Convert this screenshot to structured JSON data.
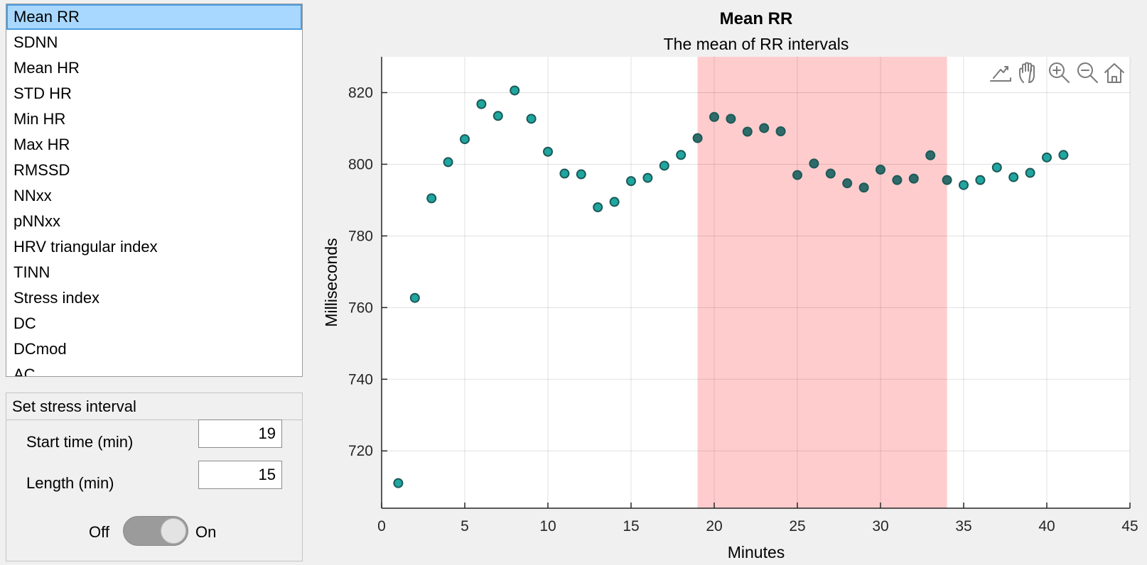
{
  "metric_list": {
    "items": [
      "Mean RR",
      "SDNN",
      "Mean HR",
      "STD HR",
      "Min HR",
      "Max HR",
      "RMSSD",
      "NNxx",
      "pNNxx",
      "HRV triangular index",
      "TINN",
      "Stress index",
      "DC",
      "DCmod",
      "AC"
    ],
    "selected_index": 0
  },
  "stress_panel": {
    "title": "Set stress interval",
    "start_label": "Start time (min)",
    "start_value": "19",
    "length_label": "Length (min)",
    "length_value": "15",
    "toggle_off_label": "Off",
    "toggle_on_label": "On",
    "toggle_state": "on"
  },
  "colors": {
    "marker_fill": "#1fa6a0",
    "marker_fill_in_interval": "#2f6b6a",
    "marker_edge": "#1c5a58",
    "highlight": "#ffcccd",
    "selection": "#a8d8ff"
  },
  "toolbar_icons": [
    "export-icon",
    "pan-hand-icon",
    "zoom-in-icon",
    "zoom-out-icon",
    "home-icon"
  ],
  "chart_data": {
    "type": "scatter",
    "title": "Mean RR",
    "subtitle": "The mean of RR intervals",
    "xlabel": "Minutes",
    "ylabel": "Milliseconds",
    "xlim": [
      0,
      45
    ],
    "ylim": [
      704,
      830
    ],
    "xticks": [
      0,
      5,
      10,
      15,
      20,
      25,
      30,
      35,
      40,
      45
    ],
    "yticks": [
      720,
      740,
      760,
      780,
      800,
      820
    ],
    "grid": true,
    "highlight_interval": [
      19,
      34
    ],
    "x": [
      1,
      2,
      3,
      4,
      5,
      6,
      7,
      8,
      9,
      10,
      11,
      12,
      13,
      14,
      15,
      16,
      17,
      18,
      19,
      20,
      21,
      22,
      23,
      24,
      25,
      26,
      27,
      28,
      29,
      30,
      31,
      32,
      33,
      34,
      35,
      36,
      37,
      38,
      39,
      40,
      41
    ],
    "y": [
      711,
      762.7,
      790.5,
      800.6,
      807,
      816.8,
      813.5,
      820.6,
      812.7,
      803.5,
      797.4,
      797.2,
      788,
      789.5,
      795.3,
      796.2,
      799.6,
      802.6,
      807.3,
      813.2,
      812.7,
      809.1,
      810.1,
      809.2,
      797,
      800.2,
      797.4,
      794.7,
      793.5,
      798.5,
      795.6,
      796,
      802.5,
      795.6,
      794.2,
      795.6,
      799.1,
      796.4,
      797.6,
      801.9,
      802.6
    ]
  }
}
